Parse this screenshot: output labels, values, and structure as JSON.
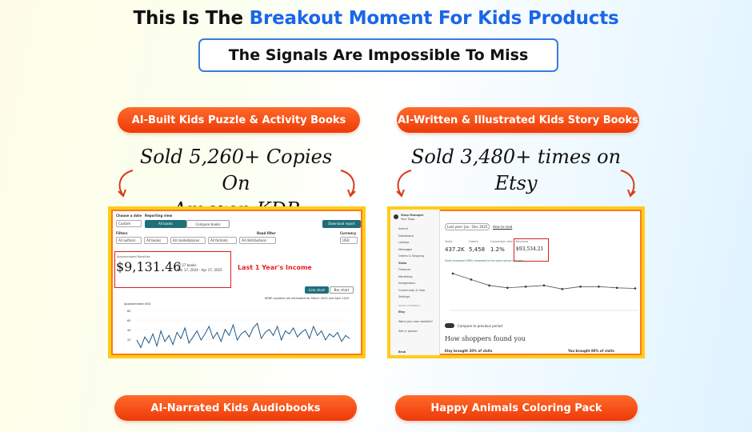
{
  "headline": {
    "prefix": "This Is The ",
    "highlight": "Breakout Moment For Kids Products"
  },
  "subheadline": "The Signals Are Impossible To Miss",
  "products": [
    {
      "label": "AI-Built Kids Puzzle & Activity Books",
      "claim_line1": "Sold 5,260+ Copies On",
      "claim_line2": "Amazon KDP"
    },
    {
      "label": "AI-Written & Illustrated Kids Story Books",
      "claim_line1": "Sold 3,480+ times on",
      "claim_line2": "Etsy"
    },
    {
      "label": "AI-Narrated Kids Audiobooks"
    },
    {
      "label": "Happy Animals Coloring Pack"
    }
  ],
  "kdp": {
    "choose_date": "Choose a date",
    "date_value": "Custom",
    "reporting_view": "Reporting view",
    "all_books": "All books",
    "compare_books": "Compare books",
    "download": "Download report",
    "filters": "Filters",
    "filter_values": [
      "All authors",
      "All books",
      "All marketplaces",
      "All formats",
      "All distributions"
    ],
    "read_filter": "Read filter",
    "currency": "Currency",
    "currency_value": "USD",
    "royalties_label": "Approximated Royalties",
    "royalties_value": "$9,131.46",
    "books_count": "All 27 books",
    "date_range": "Mar 17, 2024 - Apr 17, 2025",
    "annotation": "Last 1 Year's Income",
    "line_chart": "Line chart",
    "bar_chart": "Bar chart",
    "kenp_note": "KENP royalties are estimated for March 2025 and April 2025",
    "chart_title": "Approximated USD",
    "y_ticks": [
      "80",
      "60",
      "40",
      "20"
    ]
  },
  "etsy": {
    "shop_manager": "Shop Manager",
    "shop_name": "Your Shop",
    "nav": [
      "Search",
      "Dashboard",
      "Listings",
      "Messages",
      "Orders & Shipping",
      "Stats",
      "Finances",
      "Marketing",
      "Integrations",
      "Community & Help",
      "Settings"
    ],
    "sales_channels": "SALES CHANNELS",
    "channel_etsy": "Etsy",
    "channel_web": "Want your own website?",
    "channel_person": "Sell in person",
    "date_filter": "Last year: Jan - Dec 2025",
    "how_link": "How to read",
    "stats": [
      {
        "label": "Visits",
        "value": "437.2K"
      },
      {
        "label": "Orders",
        "value": "5,458"
      },
      {
        "label": "Conversion rate",
        "value": "1.2%"
      },
      {
        "label": "Revenue",
        "value": "$93,534.21"
      }
    ],
    "note": "Visits increased 598% compared to the same period last year",
    "compare": "Compare to previous period",
    "how_found": "How shoppers found you",
    "etsy_brought": "Etsy brought 20% of visits",
    "you_brought": "You brought 80% of visits",
    "user": "Bruk"
  },
  "kdp_series": [
    18,
    8,
    22,
    14,
    26,
    10,
    30,
    16,
    24,
    12,
    28,
    20,
    34,
    14,
    22,
    30,
    18,
    26,
    36,
    20,
    28,
    16,
    32,
    24,
    38,
    18,
    26,
    30,
    22,
    34,
    40,
    20,
    28,
    32,
    24,
    36,
    18,
    30,
    26,
    34,
    22,
    28,
    32,
    20,
    36,
    24,
    30,
    18,
    26,
    22,
    28,
    16,
    24,
    20
  ],
  "etsy_series": [
    62,
    52,
    42,
    38,
    40,
    42,
    36,
    40,
    40,
    38,
    37
  ]
}
